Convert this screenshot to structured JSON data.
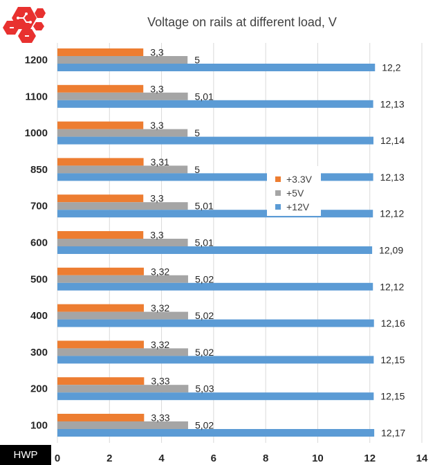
{
  "chart_data": {
    "type": "bar",
    "orientation": "horizontal",
    "title": "Voltage on rails at different load, V",
    "categories": [
      "1200",
      "1100",
      "1000",
      "850",
      "700",
      "600",
      "500",
      "400",
      "300",
      "200",
      "100"
    ],
    "series": [
      {
        "name": "+3.3V",
        "color": "#ED7D31",
        "values": [
          3.3,
          3.3,
          3.3,
          3.31,
          3.3,
          3.3,
          3.32,
          3.32,
          3.32,
          3.33,
          3.33
        ],
        "labels": [
          "3,3",
          "3,3",
          "3,3",
          "3,31",
          "3,3",
          "3,3",
          "3,32",
          "3,32",
          "3,32",
          "3,33",
          "3,33"
        ]
      },
      {
        "name": "+5V",
        "color": "#A5A5A5",
        "values": [
          5,
          5.01,
          5,
          5,
          5.01,
          5.01,
          5.02,
          5.02,
          5.02,
          5.03,
          5.02
        ],
        "labels": [
          "5",
          "5,01",
          "5",
          "5",
          "5,01",
          "5,01",
          "5,02",
          "5,02",
          "5,02",
          "5,03",
          "5,02"
        ]
      },
      {
        "name": "+12V",
        "color": "#5B9BD5",
        "values": [
          12.2,
          12.13,
          12.14,
          12.13,
          12.12,
          12.09,
          12.12,
          12.16,
          12.15,
          12.15,
          12.17
        ],
        "labels": [
          "12,2",
          "12,13",
          "12,14",
          "12,13",
          "12,12",
          "12,09",
          "12,12",
          "12,16",
          "12,15",
          "12,15",
          "12,17"
        ]
      }
    ],
    "xlim": [
      0,
      14
    ],
    "xticks": [
      "0",
      "2",
      "4",
      "6",
      "8",
      "10",
      "12",
      "14"
    ],
    "grid": "vertical",
    "legend": "center-right"
  },
  "watermark": "HWP",
  "colors": {
    "gridline": "#D9D9D9",
    "logo": "#E8312F"
  }
}
